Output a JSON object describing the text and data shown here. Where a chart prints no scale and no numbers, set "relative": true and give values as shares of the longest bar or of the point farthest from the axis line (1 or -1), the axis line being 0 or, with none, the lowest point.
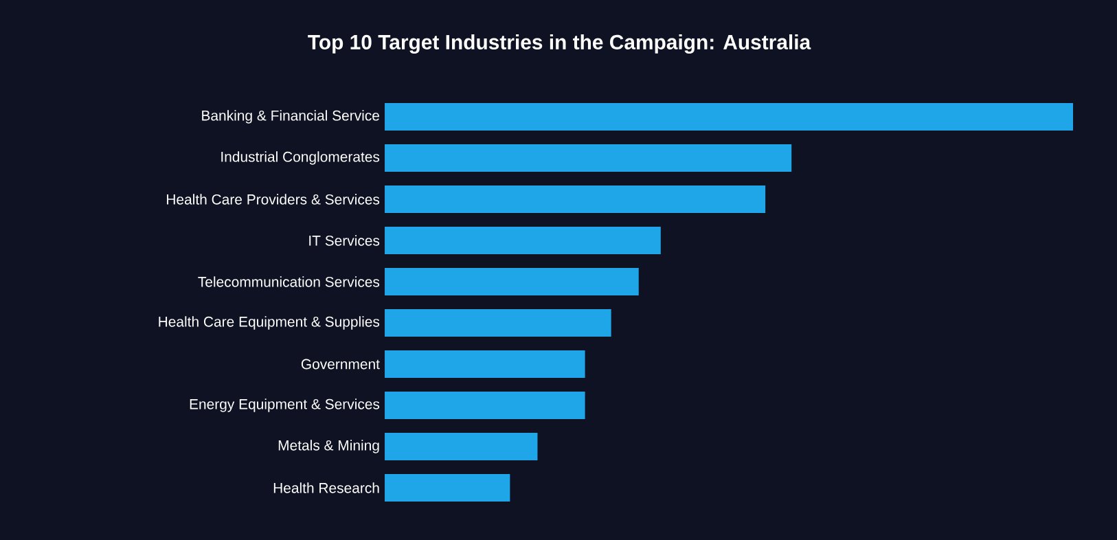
{
  "chart_data": {
    "type": "bar",
    "orientation": "horizontal",
    "relative": true,
    "title": "Top 10 Target Industries in the Campaign: Australia",
    "categories": [
      "Banking & Financial Service",
      "Industrial Conglomerates",
      "Health Care Providers & Services",
      "IT Services",
      "Telecommunication Services",
      "Health Care Equipment & Supplies",
      "Government",
      "Energy Equipment & Services",
      "Metals & Mining",
      "Health Research"
    ],
    "values": [
      1,
      0.591,
      0.553,
      0.401,
      0.369,
      0.329,
      0.291,
      0.291,
      0.222,
      0.182
    ],
    "color": "#1fa6e8"
  }
}
